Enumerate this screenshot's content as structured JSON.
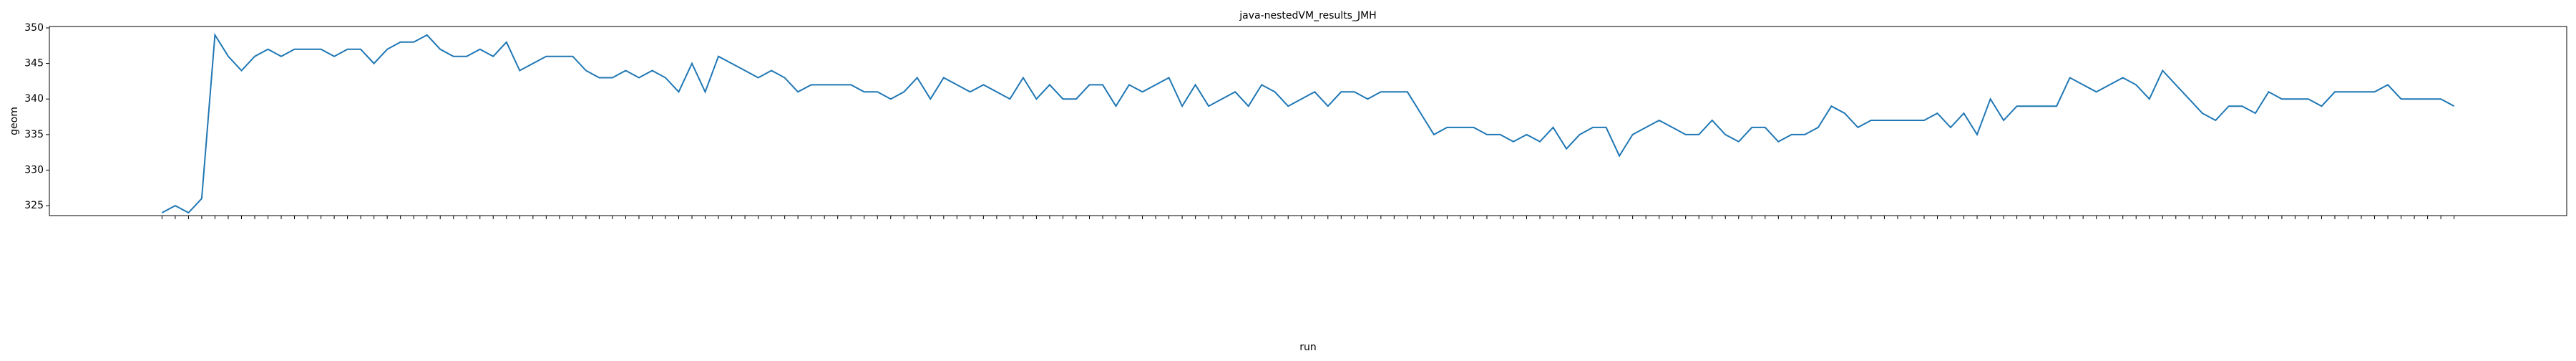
{
  "chart_data": {
    "type": "line",
    "title": "java-nestedVM_results_JMH",
    "xlabel": "run",
    "ylabel": "geom",
    "categories": [
      null,
      null,
      null,
      null,
      null,
      null,
      null,
      null,
      null,
      null,
      null,
      null,
      null,
      null,
      null,
      null,
      null,
      null,
      null,
      null,
      null,
      null,
      null,
      null,
      null,
      null,
      null,
      null,
      null,
      null,
      null,
      null,
      null,
      null,
      null,
      null,
      null,
      null,
      null,
      null,
      null,
      null,
      null,
      null,
      null,
      null,
      null,
      null,
      null,
      null,
      null,
      null,
      null,
      null,
      null,
      null,
      null,
      null,
      null,
      null,
      null,
      null,
      null,
      null,
      null,
      null,
      null,
      null,
      null,
      null,
      null,
      null,
      null,
      null,
      null,
      null,
      null,
      null,
      null,
      null,
      null,
      null,
      null,
      null,
      null,
      null,
      null,
      null,
      null,
      null,
      null,
      null,
      null,
      null,
      null,
      null,
      null,
      null,
      null,
      null,
      null,
      null,
      null,
      null,
      null,
      null,
      null,
      null,
      null,
      null,
      null,
      null,
      null,
      null,
      null,
      null,
      null,
      null,
      null,
      null,
      null,
      null,
      null,
      null,
      null,
      null,
      null,
      null,
      null,
      null,
      null,
      null,
      null,
      null,
      null,
      null,
      null,
      null,
      null,
      null,
      null,
      null,
      null,
      null,
      null,
      null,
      null,
      null,
      null,
      null,
      null,
      null,
      null,
      null,
      null,
      null,
      null,
      null,
      null,
      null,
      null,
      null,
      null,
      null,
      null,
      null,
      null,
      null,
      null,
      null,
      null,
      null,
      null,
      null
    ],
    "series": [
      {
        "name": "geom",
        "color": "#1f77b4",
        "values": [
          324,
          325,
          324,
          326,
          349,
          346,
          344,
          346,
          347,
          346,
          347,
          347,
          347,
          346,
          347,
          347,
          345,
          347,
          348,
          348,
          349,
          347,
          346,
          346,
          347,
          346,
          348,
          344,
          345,
          346,
          346,
          346,
          344,
          343,
          343,
          344,
          343,
          344,
          343,
          341,
          345,
          341,
          346,
          345,
          344,
          343,
          344,
          343,
          341,
          342,
          342,
          342,
          342,
          341,
          341,
          340,
          341,
          343,
          340,
          343,
          342,
          341,
          342,
          341,
          340,
          343,
          340,
          342,
          340,
          340,
          342,
          342,
          339,
          342,
          341,
          342,
          343,
          339,
          342,
          339,
          340,
          341,
          339,
          342,
          341,
          339,
          340,
          341,
          339,
          341,
          341,
          340,
          341,
          341,
          341,
          338,
          335,
          336,
          336,
          336,
          335,
          335,
          334,
          335,
          334,
          336,
          333,
          335,
          336,
          336,
          332,
          335,
          336,
          337,
          336,
          335,
          335,
          337,
          335,
          334,
          336,
          336,
          334,
          335,
          335,
          336,
          339,
          338,
          336,
          337,
          337,
          337,
          337,
          337,
          338,
          336,
          338,
          335,
          340,
          337,
          339,
          339,
          339,
          339,
          343,
          342,
          341,
          342,
          343,
          342,
          340,
          344,
          342,
          340,
          338,
          337,
          339,
          339,
          338,
          341,
          340,
          340,
          340,
          339,
          341,
          341,
          341,
          341,
          342,
          340,
          340,
          340,
          340,
          339
        ]
      }
    ],
    "ylim": [
      323.6,
      350.2
    ],
    "yticks": [
      325,
      330,
      335,
      340,
      345,
      350
    ],
    "grid": false
  }
}
